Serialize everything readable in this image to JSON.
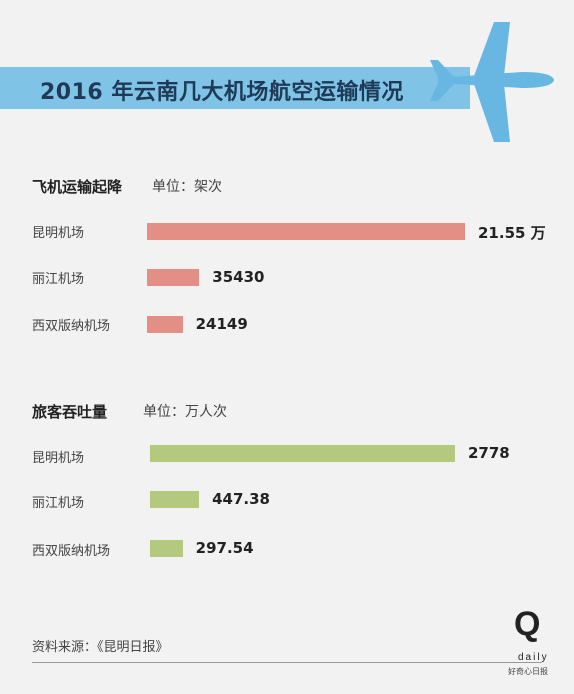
{
  "title": "2016 年云南几大机场航空运输情况",
  "colors": {
    "banner": "#7fc4e6",
    "flights_bar": "#e48f86",
    "passengers_bar": "#b4c87e",
    "plane": "#67b7e2"
  },
  "chart_data": [
    {
      "type": "bar",
      "orientation": "horizontal",
      "title": "飞机运输起降",
      "unit_label": "单位：架次",
      "categories": [
        "昆明机场",
        "丽江机场",
        "西双版纳机场"
      ],
      "values": [
        215500,
        35430,
        24149
      ],
      "value_labels": [
        "21.55 万",
        "35430",
        "24149"
      ],
      "color": "#e48f86"
    },
    {
      "type": "bar",
      "orientation": "horizontal",
      "title": "旅客吞吐量",
      "unit_label": "单位：万人次",
      "categories": [
        "昆明机场",
        "丽江机场",
        "西双版纳机场"
      ],
      "values": [
        2778,
        447.38,
        297.54
      ],
      "value_labels": [
        "2778",
        "447.38",
        "297.54"
      ],
      "color": "#b4c87e"
    }
  ],
  "source": "资料来源：《昆明日报》",
  "logo": {
    "mark": "Q",
    "word": "daily",
    "tagline": "好奇心日报"
  }
}
